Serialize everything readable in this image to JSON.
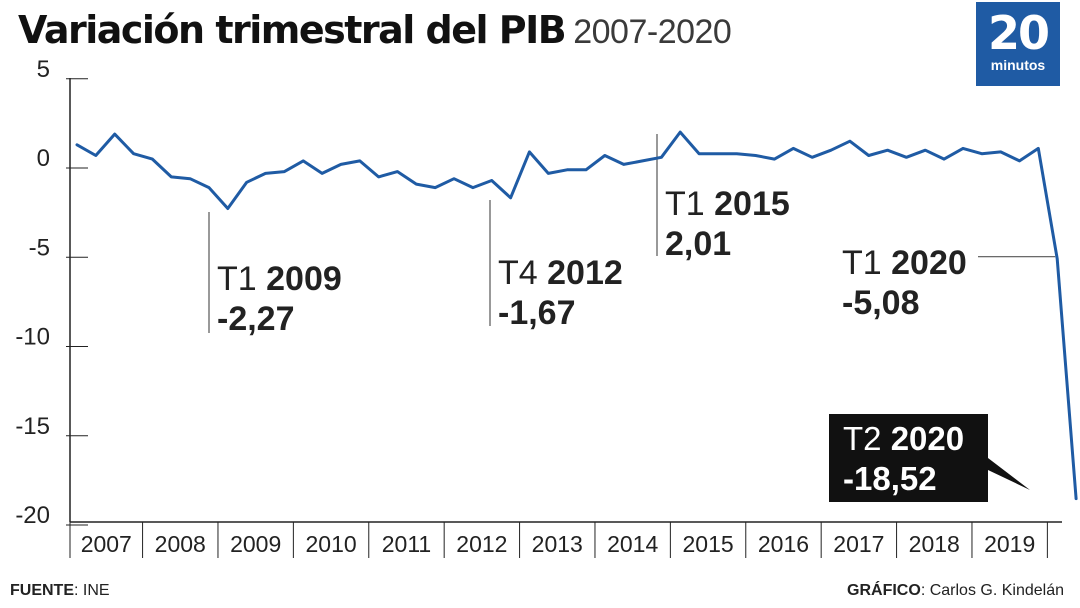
{
  "header": {
    "title": "Variación trimestral del PIB",
    "subtitle": "2007-2020"
  },
  "logo": {
    "number": "20",
    "word": "minutos",
    "color": "#1f5ba4"
  },
  "footer": {
    "source_label": "FUENTE",
    "source_value": ": INE",
    "credit_label": "GRÁFICO",
    "credit_value": ": Carlos G. Kindelán"
  },
  "chart_data": {
    "type": "line",
    "title": "Variación trimestral del PIB",
    "subtitle": "2007-2020",
    "xlabel": "",
    "ylabel": "",
    "ylim": [
      -20,
      5
    ],
    "yticks": [
      5,
      0,
      -5,
      -10,
      -15,
      -20
    ],
    "ytick_labels": [
      "5",
      "0",
      "-5",
      "-10",
      "-15",
      "-20"
    ],
    "year_labels": [
      "2007",
      "2008",
      "2009",
      "2010",
      "2011",
      "2012",
      "2013",
      "2014",
      "2015",
      "2016",
      "2017",
      "2018",
      "2019"
    ],
    "grid": false,
    "line_color": "#1f5ba4",
    "series": [
      {
        "x": [
          "T1 2007",
          "T2 2007",
          "T3 2007",
          "T4 2007",
          "T1 2008",
          "T2 2008",
          "T3 2008",
          "T4 2008",
          "T1 2009",
          "T2 2009",
          "T3 2009",
          "T4 2009",
          "T1 2010",
          "T2 2010",
          "T3 2010",
          "T4 2010",
          "T1 2011",
          "T2 2011",
          "T3 2011",
          "T4 2011",
          "T1 2012",
          "T2 2012",
          "T3 2012",
          "T4 2012",
          "T1 2013",
          "T2 2013",
          "T3 2013",
          "T4 2013",
          "T1 2014",
          "T2 2014",
          "T3 2014",
          "T4 2014",
          "T1 2015",
          "T2 2015",
          "T3 2015",
          "T4 2015",
          "T1 2016",
          "T2 2016",
          "T3 2016",
          "T4 2016",
          "T1 2017",
          "T2 2017",
          "T3 2017",
          "T4 2017",
          "T1 2018",
          "T2 2018",
          "T3 2018",
          "T4 2018",
          "T1 2019",
          "T2 2019",
          "T3 2019",
          "T4 2019",
          "T1 2020",
          "T2 2020"
        ],
        "values": [
          1.3,
          0.7,
          1.9,
          0.8,
          0.5,
          -0.5,
          -0.6,
          -1.1,
          -2.27,
          -0.8,
          -0.3,
          -0.2,
          0.4,
          -0.3,
          0.2,
          0.4,
          -0.5,
          -0.2,
          -0.9,
          -1.1,
          -0.6,
          -1.1,
          -0.7,
          -1.67,
          0.9,
          -0.3,
          -0.1,
          -0.1,
          0.7,
          0.2,
          0.4,
          0.6,
          2.01,
          0.8,
          0.8,
          0.8,
          0.7,
          0.5,
          1.1,
          0.6,
          1.0,
          1.5,
          0.7,
          1.0,
          0.6,
          1.0,
          0.5,
          1.1,
          0.8,
          0.9,
          0.4,
          1.1,
          -5.08,
          -18.52
        ]
      }
    ],
    "annotations": [
      {
        "period": "T1",
        "year": "2009",
        "value": "-2,27",
        "index": 8
      },
      {
        "period": "T4",
        "year": "2012",
        "value": "-1,67",
        "index": 23
      },
      {
        "period": "T1",
        "year": "2015",
        "value": "2,01",
        "index": 32
      },
      {
        "period": "T1",
        "year": "2020",
        "value": "-5,08",
        "index": 52
      },
      {
        "period": "T2",
        "year": "2020",
        "value": "-18,52",
        "index": 53,
        "highlight": true
      }
    ]
  }
}
